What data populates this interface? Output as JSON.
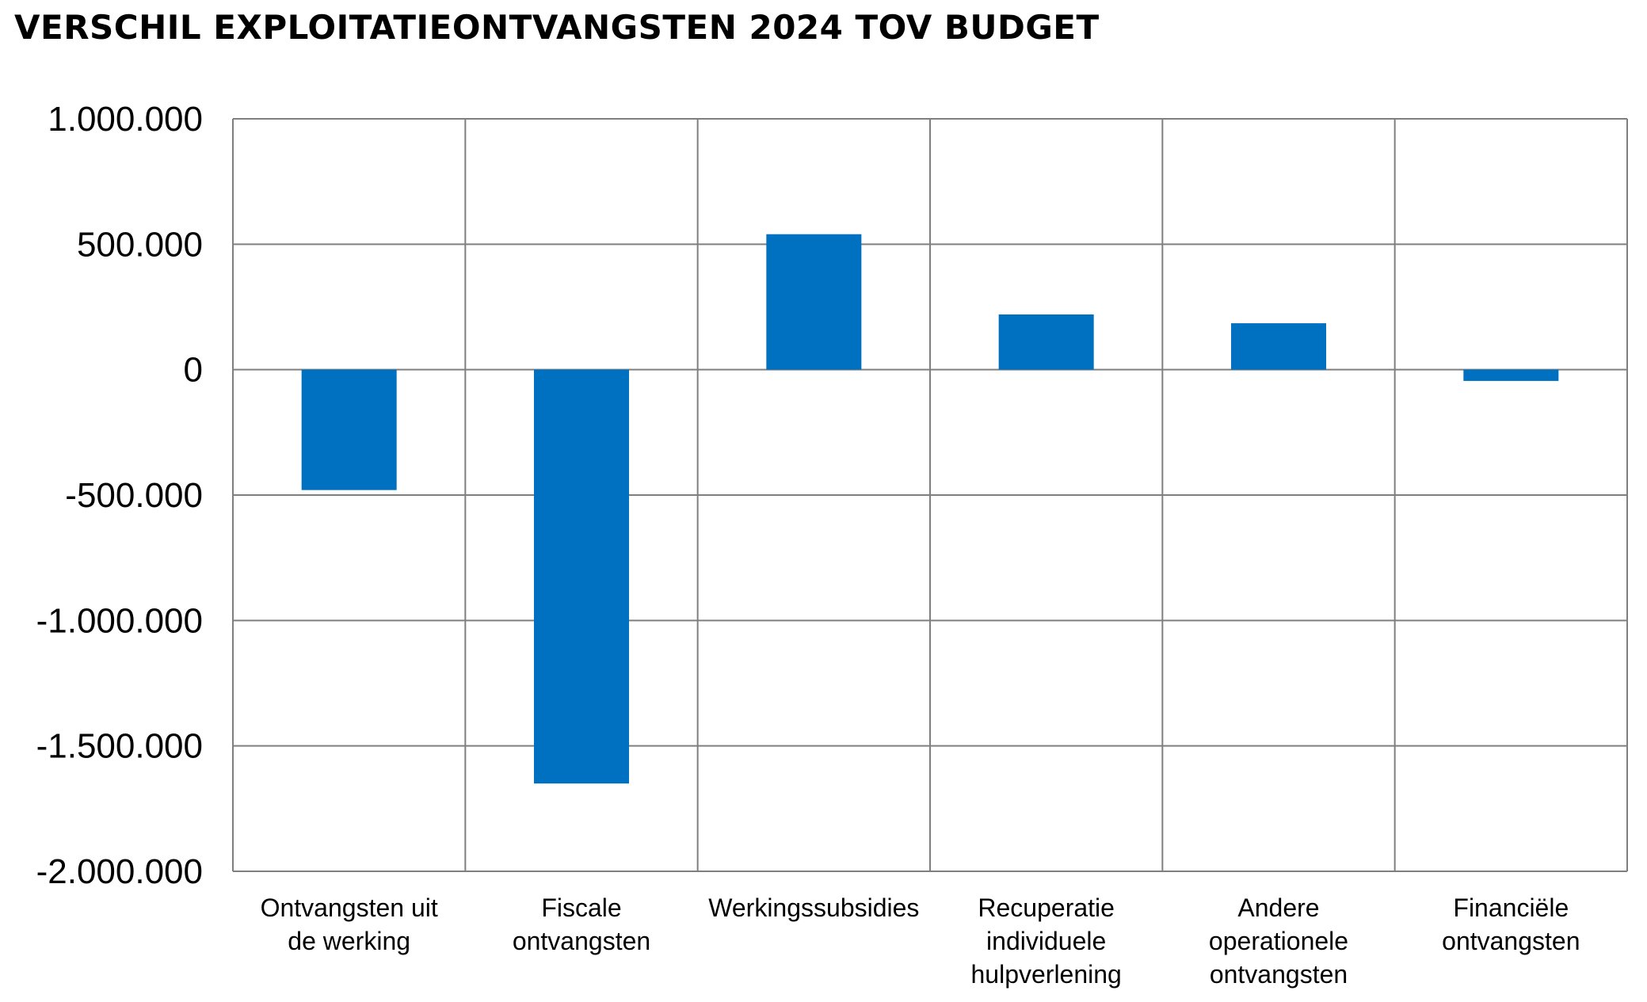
{
  "chart_data": {
    "type": "bar",
    "title": "VERSCHIL EXPLOITATIEONTVANGSTEN 2024 TOV BUDGET",
    "categories": [
      [
        "Ontvangsten uit",
        "de werking"
      ],
      [
        "Fiscale",
        "ontvangsten"
      ],
      [
        "Werkingssubsidies"
      ],
      [
        "Recuperatie",
        "individuele",
        "hulpverlening"
      ],
      [
        "Andere",
        "operationele",
        "ontvangsten"
      ],
      [
        "Financiële",
        "ontvangsten"
      ]
    ],
    "values": [
      -480000,
      -1650000,
      540000,
      220000,
      185000,
      -45000
    ],
    "ylim": [
      -2000000,
      1000000
    ],
    "yticks": [
      1000000,
      500000,
      0,
      -500000,
      -1000000,
      -1500000,
      -2000000
    ],
    "ytick_labels": [
      "1.000.000",
      "500.000",
      "0",
      "-500.000",
      "-1.000.000",
      "-1.500.000",
      "-2.000.000"
    ],
    "xlabel": "",
    "ylabel": "",
    "grid": true,
    "bar_color": "#0070c0",
    "grid_color": "#7f7f7f"
  }
}
